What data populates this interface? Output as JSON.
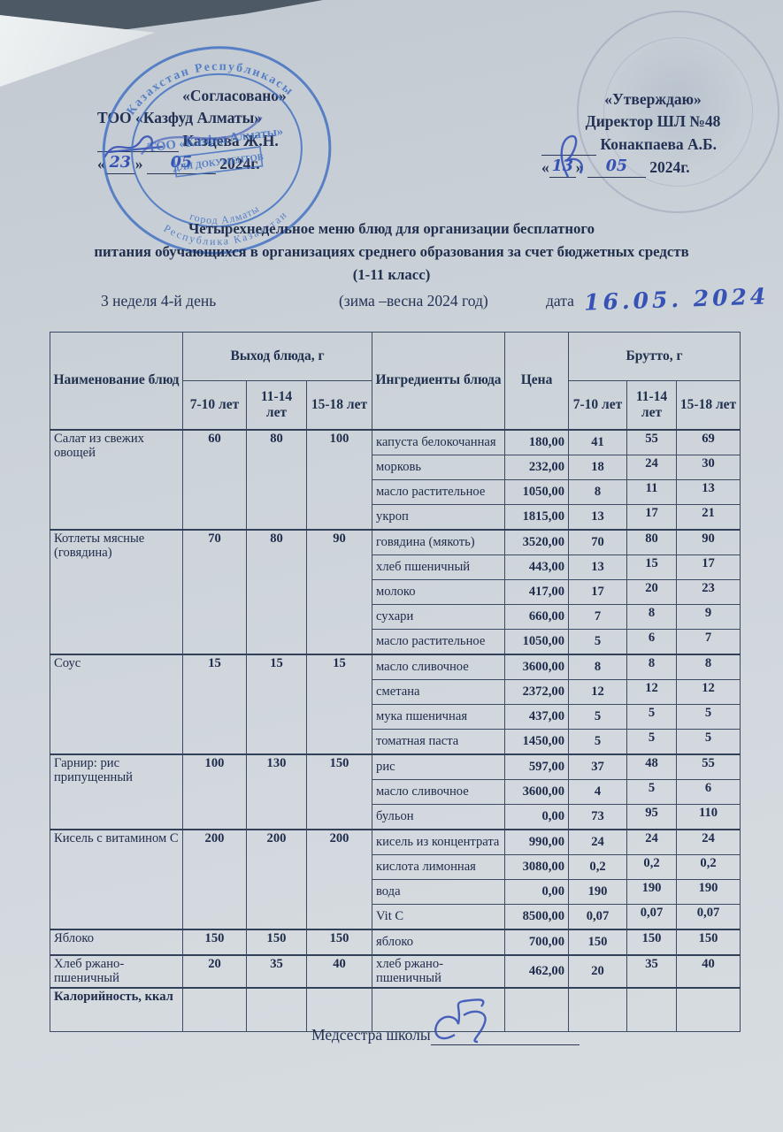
{
  "colors": {
    "paper": "#ccd3d9",
    "text_navy": "#233155",
    "stamp_blue": "#3f6fc2",
    "ink_blue": "#3752b5",
    "table_border": "#3d4a63"
  },
  "header": {
    "left": {
      "approve": "«Согласовано»",
      "org": "ТОО «Казфуд Алматы»",
      "name": "Казцева Ж.Н.",
      "q1": "«",
      "day": "23",
      "q2": "»",
      "month": "05",
      "year": "2024г."
    },
    "right": {
      "approve": "«Утверждаю»",
      "org": "Директор ШЛ №48",
      "name": "Конакпаева А.Б.",
      "q1": "«",
      "day": "13",
      "q2": "»",
      "month": "05",
      "year": "2024г."
    }
  },
  "stamp_left": {
    "arc_top": "Казахстан Республикасы",
    "center": "ТОО «Казфуд Алматы»",
    "box": "ДЛЯ ДОКУМЕНТОВ",
    "arc_bottom_inner": "город Алматы",
    "arc_bottom_outer": "Республика Казахстан"
  },
  "title": {
    "line1": "Четырехнедельное меню блюд для организации бесплатного",
    "line2": "питания обучающихся в организациях среднего образования за счет бюджетных средств",
    "line3": "(1-11 класс)"
  },
  "subrow": {
    "week": "3 неделя 4-й день",
    "season": "(зима –весна  2024 год)",
    "date_label": "дата",
    "date_value": "16.05. 2024"
  },
  "table": {
    "headers": {
      "name": "Наименование блюд",
      "out": "Выход блюда, г",
      "ingredients": "Ингредиенты блюда",
      "price": "Цена",
      "brutto": "Брутто, г",
      "age1": "7-10 лет",
      "age2": "11-14 лет",
      "age3": "15-18 лет"
    },
    "groups": [
      {
        "dish": "Салат из свежих овощей",
        "out": [
          "60",
          "80",
          "100"
        ],
        "ingredients": [
          {
            "name": "капуста белокочанная",
            "price": "180,00",
            "brutto": [
              "41",
              "55",
              "69"
            ]
          },
          {
            "name": "морковь",
            "price": "232,00",
            "brutto": [
              "18",
              "24",
              "30"
            ]
          },
          {
            "name": "масло растительное",
            "price": "1050,00",
            "brutto": [
              "8",
              "11",
              "13"
            ]
          },
          {
            "name": "укроп",
            "price": "1815,00",
            "brutto": [
              "13",
              "17",
              "21"
            ]
          }
        ]
      },
      {
        "dish": "Котлеты мясные (говядина)",
        "out": [
          "70",
          "80",
          "90"
        ],
        "ingredients": [
          {
            "name": "говядина (мякоть)",
            "price": "3520,00",
            "brutto": [
              "70",
              "80",
              "90"
            ]
          },
          {
            "name": "хлеб пшеничный",
            "price": "443,00",
            "brutto": [
              "13",
              "15",
              "17"
            ]
          },
          {
            "name": "молоко",
            "price": "417,00",
            "brutto": [
              "17",
              "20",
              "23"
            ]
          },
          {
            "name": "сухари",
            "price": "660,00",
            "brutto": [
              "7",
              "8",
              "9"
            ]
          },
          {
            "name": "масло растительное",
            "price": "1050,00",
            "brutto": [
              "5",
              "6",
              "7"
            ]
          }
        ]
      },
      {
        "dish": "Соус",
        "out": [
          "15",
          "15",
          "15"
        ],
        "ingredients": [
          {
            "name": "масло сливочное",
            "price": "3600,00",
            "brutto": [
              "8",
              "8",
              "8"
            ]
          },
          {
            "name": "сметана",
            "price": "2372,00",
            "brutto": [
              "12",
              "12",
              "12"
            ]
          },
          {
            "name": "мука пшеничная",
            "price": "437,00",
            "brutto": [
              "5",
              "5",
              "5"
            ]
          },
          {
            "name": "томатная паста",
            "price": "1450,00",
            "brutto": [
              "5",
              "5",
              "5"
            ]
          }
        ]
      },
      {
        "dish": "Гарнир: рис припущенный",
        "out": [
          "100",
          "130",
          "150"
        ],
        "ingredients": [
          {
            "name": "рис",
            "price": "597,00",
            "brutto": [
              "37",
              "48",
              "55"
            ]
          },
          {
            "name": "масло сливочное",
            "price": "3600,00",
            "brutto": [
              "4",
              "5",
              "6"
            ]
          },
          {
            "name": "бульон",
            "price": "0,00",
            "brutto": [
              "73",
              "95",
              "110"
            ]
          }
        ]
      },
      {
        "dish": "Кисель с витамином С",
        "out": [
          "200",
          "200",
          "200"
        ],
        "ingredients": [
          {
            "name": "кисель из концентрата",
            "price": "990,00",
            "brutto": [
              "24",
              "24",
              "24"
            ]
          },
          {
            "name": "кислота лимонная",
            "price": "3080,00",
            "brutto": [
              "0,2",
              "0,2",
              "0,2"
            ]
          },
          {
            "name": "вода",
            "price": "0,00",
            "brutto": [
              "190",
              "190",
              "190"
            ]
          },
          {
            "name": "Vit C",
            "price": "8500,00",
            "brutto": [
              "0,07",
              "0,07",
              "0,07"
            ]
          }
        ]
      },
      {
        "dish": "Яблоко",
        "out": [
          "150",
          "150",
          "150"
        ],
        "ingredients": [
          {
            "name": "яблоко",
            "price": "700,00",
            "brutto": [
              "150",
              "150",
              "150"
            ]
          }
        ]
      },
      {
        "dish": "Хлеб ржано-пшеничный",
        "out": [
          "20",
          "35",
          "40"
        ],
        "ingredients": [
          {
            "name": "хлеб ржано-пшеничный",
            "price": "462,00",
            "brutto": [
              "20",
              "35",
              "40"
            ]
          }
        ]
      }
    ],
    "last_row": {
      "label": "Калорийность, ккал"
    }
  },
  "footer": {
    "label": "Медсестра школы"
  }
}
